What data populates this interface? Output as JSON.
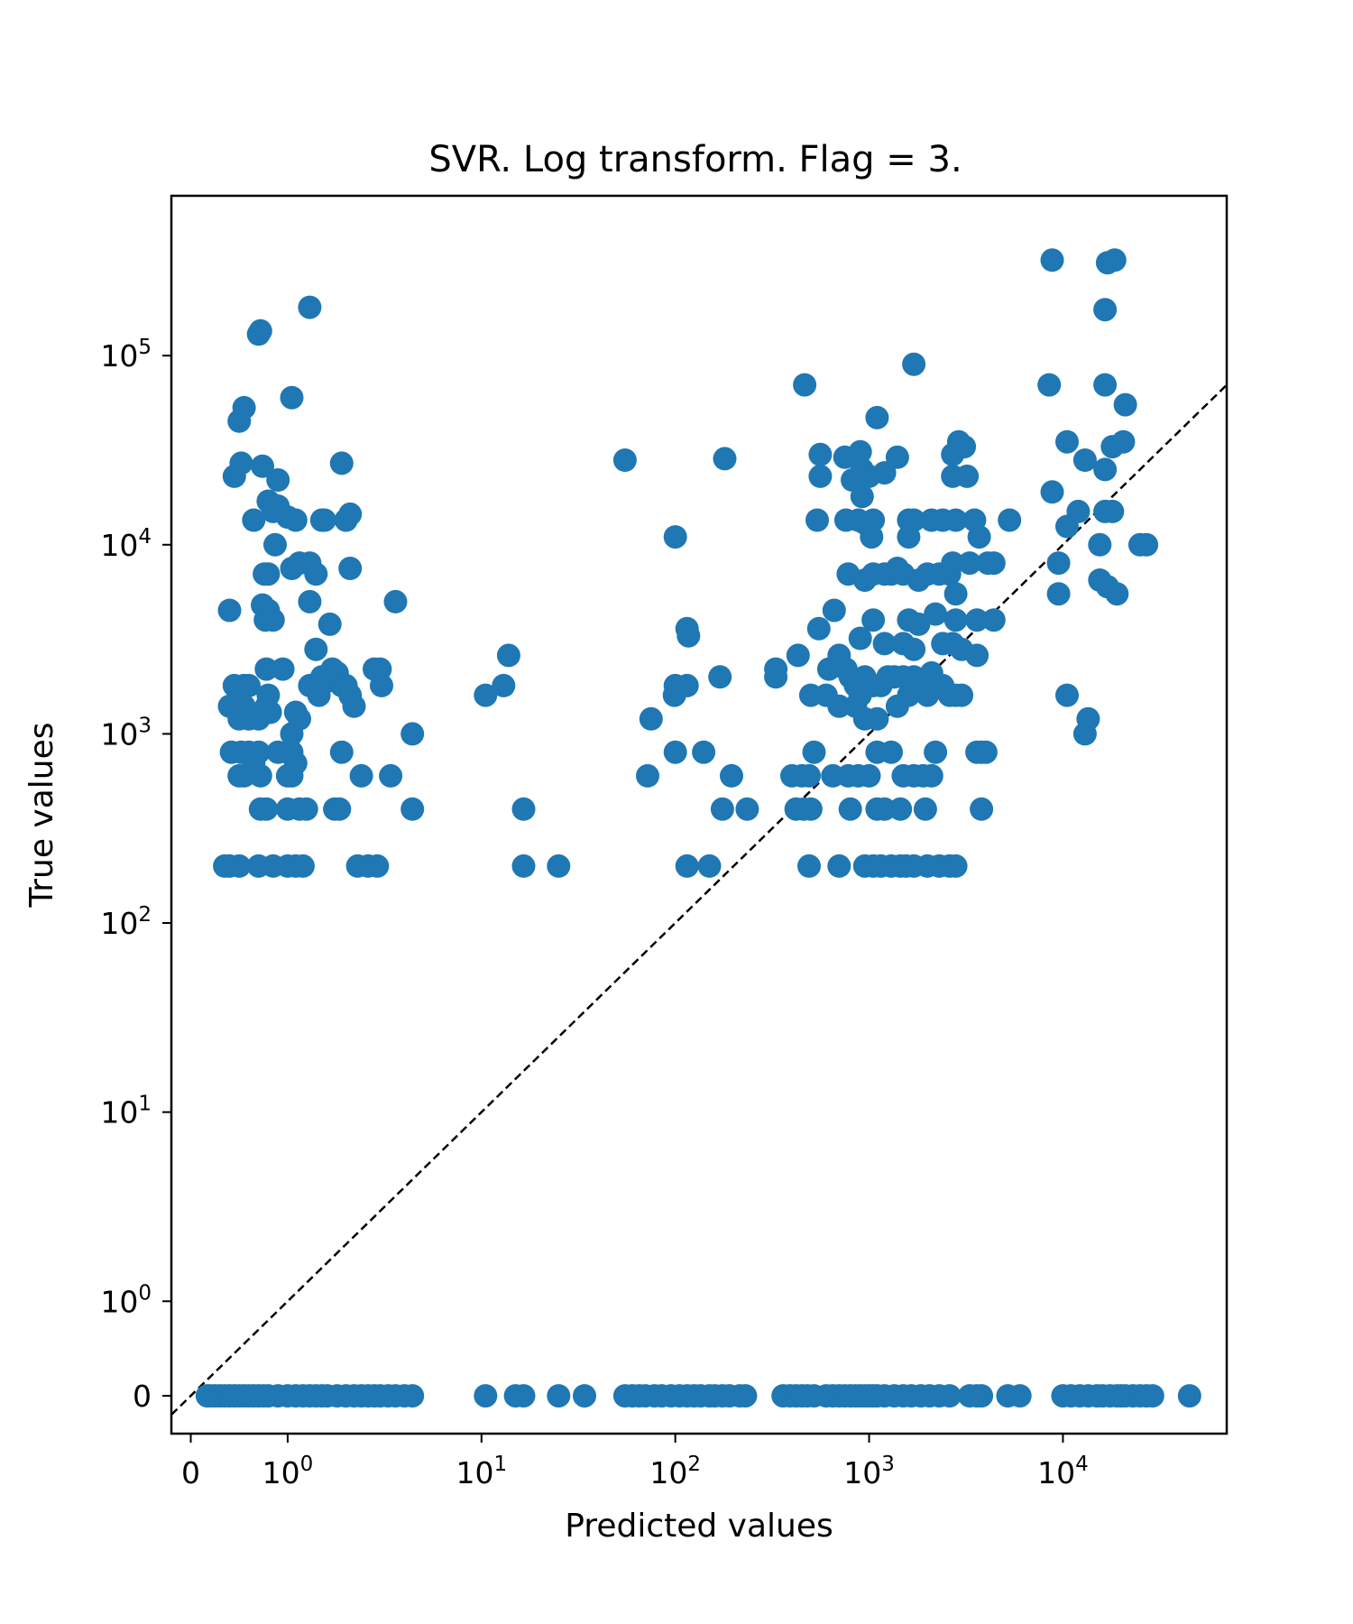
{
  "chart_data": {
    "type": "scatter",
    "title": "SVR. Log transform. Flag = 3.",
    "xlabel": "Predicted values",
    "ylabel": "True values",
    "xscale": "symlog",
    "yscale": "symlog",
    "xlim": [
      -0.2,
      70000
    ],
    "ylim": [
      -0.4,
      700000
    ],
    "grid": false,
    "x_ticks": [
      {
        "value": 0,
        "base": "0",
        "exp": ""
      },
      {
        "value": 1,
        "base": "10",
        "exp": "0"
      },
      {
        "value": 10,
        "base": "10",
        "exp": "1"
      },
      {
        "value": 100,
        "base": "10",
        "exp": "2"
      },
      {
        "value": 1000,
        "base": "10",
        "exp": "3"
      },
      {
        "value": 10000,
        "base": "10",
        "exp": "4"
      }
    ],
    "y_ticks": [
      {
        "value": 0,
        "base": "0",
        "exp": ""
      },
      {
        "value": 1,
        "base": "10",
        "exp": "0"
      },
      {
        "value": 10,
        "base": "10",
        "exp": "1"
      },
      {
        "value": 100,
        "base": "10",
        "exp": "2"
      },
      {
        "value": 1000,
        "base": "10",
        "exp": "3"
      },
      {
        "value": 10000,
        "base": "10",
        "exp": "4"
      },
      {
        "value": 100000,
        "base": "10",
        "exp": "5"
      }
    ],
    "reference_line": {
      "style": "dashed",
      "color": "#000000",
      "from": [
        -0.2,
        -0.2
      ],
      "to": [
        70000,
        70000
      ]
    },
    "marker_color": "#1f77b4",
    "points": [
      [
        0.17,
        0
      ],
      [
        0.2,
        0
      ],
      [
        0.25,
        0
      ],
      [
        0.3,
        0
      ],
      [
        0.35,
        0
      ],
      [
        0.4,
        0
      ],
      [
        0.45,
        0
      ],
      [
        0.5,
        0
      ],
      [
        0.55,
        0
      ],
      [
        0.6,
        0
      ],
      [
        0.65,
        0
      ],
      [
        0.7,
        0
      ],
      [
        0.75,
        0
      ],
      [
        0.8,
        0
      ],
      [
        0.9,
        0
      ],
      [
        1.0,
        0
      ],
      [
        1.1,
        0
      ],
      [
        1.2,
        0
      ],
      [
        1.3,
        0
      ],
      [
        1.4,
        0
      ],
      [
        1.5,
        0
      ],
      [
        1.6,
        0
      ],
      [
        1.8,
        0
      ],
      [
        2.0,
        0
      ],
      [
        2.2,
        0
      ],
      [
        2.4,
        0
      ],
      [
        2.6,
        0
      ],
      [
        2.8,
        0
      ],
      [
        3.0,
        0
      ],
      [
        3.3,
        0
      ],
      [
        3.6,
        0
      ],
      [
        4.0,
        0
      ],
      [
        4.4,
        0
      ],
      [
        10.5,
        0
      ],
      [
        15,
        0
      ],
      [
        16.5,
        0
      ],
      [
        25,
        0
      ],
      [
        34,
        0
      ],
      [
        55,
        0
      ],
      [
        60,
        0
      ],
      [
        65,
        0
      ],
      [
        70,
        0
      ],
      [
        78,
        0
      ],
      [
        85,
        0
      ],
      [
        95,
        0
      ],
      [
        105,
        0
      ],
      [
        115,
        0
      ],
      [
        125,
        0
      ],
      [
        135,
        0
      ],
      [
        150,
        0
      ],
      [
        160,
        0
      ],
      [
        175,
        0
      ],
      [
        190,
        0
      ],
      [
        215,
        0
      ],
      [
        230,
        0
      ],
      [
        360,
        0
      ],
      [
        390,
        0
      ],
      [
        420,
        0
      ],
      [
        450,
        0
      ],
      [
        480,
        0
      ],
      [
        520,
        0
      ],
      [
        600,
        0
      ],
      [
        650,
        0
      ],
      [
        700,
        0
      ],
      [
        750,
        0
      ],
      [
        800,
        0
      ],
      [
        850,
        0
      ],
      [
        900,
        0
      ],
      [
        950,
        0
      ],
      [
        1000,
        0
      ],
      [
        1050,
        0
      ],
      [
        1100,
        0
      ],
      [
        1200,
        0
      ],
      [
        1350,
        0
      ],
      [
        1500,
        0
      ],
      [
        1650,
        0
      ],
      [
        1850,
        0
      ],
      [
        2050,
        0
      ],
      [
        2300,
        0
      ],
      [
        2600,
        0
      ],
      [
        3300,
        0
      ],
      [
        3600,
        0
      ],
      [
        3800,
        0
      ],
      [
        5200,
        0
      ],
      [
        6000,
        0
      ],
      [
        10000,
        0
      ],
      [
        11000,
        0
      ],
      [
        12200,
        0
      ],
      [
        13500,
        0
      ],
      [
        15000,
        0
      ],
      [
        16000,
        0
      ],
      [
        17500,
        0
      ],
      [
        19000,
        0
      ],
      [
        20000,
        0
      ],
      [
        21000,
        0
      ],
      [
        23000,
        0
      ],
      [
        25000,
        0
      ],
      [
        27000,
        0
      ],
      [
        29000,
        0
      ],
      [
        45000,
        0
      ],
      [
        0.5,
        45000
      ],
      [
        0.55,
        53000
      ],
      [
        0.52,
        27000
      ],
      [
        0.45,
        23000
      ],
      [
        0.7,
        130000
      ],
      [
        0.72,
        135000
      ],
      [
        0.74,
        26000
      ],
      [
        1.05,
        60000
      ],
      [
        1.3,
        180000
      ],
      [
        0.9,
        22000
      ],
      [
        1.9,
        27000
      ],
      [
        0.65,
        13500
      ],
      [
        0.8,
        17000
      ],
      [
        0.85,
        15000
      ],
      [
        0.9,
        16000
      ],
      [
        1.0,
        14000
      ],
      [
        1.1,
        13500
      ],
      [
        1.5,
        13500
      ],
      [
        1.55,
        13500
      ],
      [
        2.0,
        13500
      ],
      [
        2.1,
        14500
      ],
      [
        0.87,
        10000
      ],
      [
        0.8,
        7000
      ],
      [
        0.76,
        7000
      ],
      [
        1.05,
        7500
      ],
      [
        1.15,
        8000
      ],
      [
        1.3,
        8000
      ],
      [
        1.4,
        7000
      ],
      [
        2.1,
        7500
      ],
      [
        3.6,
        5000
      ],
      [
        0.4,
        4500
      ],
      [
        0.74,
        4800
      ],
      [
        0.77,
        4000
      ],
      [
        0.8,
        4500
      ],
      [
        0.85,
        4000
      ],
      [
        1.3,
        5000
      ],
      [
        1.65,
        3800
      ],
      [
        1.4,
        2800
      ],
      [
        0.45,
        1800
      ],
      [
        0.55,
        1800
      ],
      [
        0.6,
        1800
      ],
      [
        0.78,
        2200
      ],
      [
        0.95,
        2200
      ],
      [
        0.8,
        1600
      ],
      [
        1.3,
        1800
      ],
      [
        1.45,
        1600
      ],
      [
        1.5,
        2000
      ],
      [
        1.6,
        1900
      ],
      [
        1.7,
        2200
      ],
      [
        1.8,
        2100
      ],
      [
        1.9,
        1800
      ],
      [
        2.0,
        1800
      ],
      [
        2.1,
        1600
      ],
      [
        2.2,
        1400
      ],
      [
        2.8,
        2200
      ],
      [
        3.0,
        2200
      ],
      [
        3.05,
        1800
      ],
      [
        0.4,
        1400
      ],
      [
        0.5,
        1200
      ],
      [
        0.55,
        1400
      ],
      [
        0.6,
        1200
      ],
      [
        0.7,
        1200
      ],
      [
        0.78,
        1400
      ],
      [
        0.82,
        1300
      ],
      [
        1.1,
        1300
      ],
      [
        1.15,
        1200
      ],
      [
        1.05,
        1000
      ],
      [
        0.42,
        800
      ],
      [
        0.52,
        800
      ],
      [
        0.6,
        800
      ],
      [
        0.65,
        700
      ],
      [
        0.5,
        600
      ],
      [
        0.55,
        600
      ],
      [
        0.72,
        600
      ],
      [
        0.7,
        800
      ],
      [
        0.9,
        800
      ],
      [
        1.0,
        800
      ],
      [
        1.05,
        800
      ],
      [
        1.1,
        700
      ],
      [
        1.0,
        600
      ],
      [
        1.05,
        600
      ],
      [
        1.9,
        800
      ],
      [
        2.4,
        600
      ],
      [
        3.4,
        600
      ],
      [
        4.4,
        1000
      ],
      [
        0.72,
        400
      ],
      [
        0.78,
        400
      ],
      [
        1.0,
        400
      ],
      [
        1.15,
        400
      ],
      [
        1.25,
        400
      ],
      [
        1.75,
        400
      ],
      [
        1.85,
        400
      ],
      [
        4.4,
        400
      ],
      [
        0.35,
        200
      ],
      [
        0.4,
        200
      ],
      [
        0.5,
        200
      ],
      [
        0.7,
        200
      ],
      [
        0.85,
        200
      ],
      [
        1.0,
        200
      ],
      [
        1.1,
        200
      ],
      [
        1.2,
        200
      ],
      [
        2.3,
        200
      ],
      [
        2.6,
        200
      ],
      [
        2.9,
        200
      ],
      [
        10.5,
        1600
      ],
      [
        13,
        1800
      ],
      [
        13.8,
        2600
      ],
      [
        16.5,
        400
      ],
      [
        16.5,
        200
      ],
      [
        25,
        200
      ],
      [
        55,
        28000
      ],
      [
        100,
        11000
      ],
      [
        180,
        28500
      ],
      [
        170,
        2000
      ],
      [
        115,
        3600
      ],
      [
        117,
        3300
      ],
      [
        115,
        1800
      ],
      [
        100,
        1800
      ],
      [
        99,
        1600
      ],
      [
        75,
        1200
      ],
      [
        72,
        600
      ],
      [
        100,
        800
      ],
      [
        140,
        800
      ],
      [
        195,
        600
      ],
      [
        175,
        400
      ],
      [
        235,
        400
      ],
      [
        115,
        200
      ],
      [
        150,
        200
      ],
      [
        465,
        70000
      ],
      [
        1700,
        90000
      ],
      [
        1100,
        47000
      ],
      [
        560,
        30000
      ],
      [
        560,
        23000
      ],
      [
        750,
        29000
      ],
      [
        900,
        31000
      ],
      [
        920,
        25000
      ],
      [
        820,
        22000
      ],
      [
        1000,
        23000
      ],
      [
        1200,
        24000
      ],
      [
        1400,
        29000
      ],
      [
        2700,
        30000
      ],
      [
        2900,
        35000
      ],
      [
        3100,
        33000
      ],
      [
        2700,
        23000
      ],
      [
        3200,
        23000
      ],
      [
        540,
        13500
      ],
      [
        760,
        13500
      ],
      [
        880,
        13500
      ],
      [
        950,
        13000
      ],
      [
        1050,
        13500
      ],
      [
        1030,
        11000
      ],
      [
        1600,
        13500
      ],
      [
        1700,
        13500
      ],
      [
        2100,
        13500
      ],
      [
        2400,
        13500
      ],
      [
        2800,
        13500
      ],
      [
        3500,
        13500
      ],
      [
        5300,
        13500
      ],
      [
        920,
        18000
      ],
      [
        1600,
        11000
      ],
      [
        2700,
        8000
      ],
      [
        3300,
        8000
      ],
      [
        3700,
        11000
      ],
      [
        4100,
        8000
      ],
      [
        4400,
        8000
      ],
      [
        780,
        7000
      ],
      [
        950,
        6500
      ],
      [
        1050,
        7000
      ],
      [
        1200,
        7000
      ],
      [
        1300,
        7000
      ],
      [
        1400,
        7500
      ],
      [
        1500,
        7000
      ],
      [
        1800,
        6500
      ],
      [
        2000,
        7000
      ],
      [
        2300,
        7000
      ],
      [
        2600,
        7000
      ],
      [
        2800,
        5500
      ],
      [
        660,
        4500
      ],
      [
        550,
        3600
      ],
      [
        1050,
        4000
      ],
      [
        1600,
        4000
      ],
      [
        1800,
        3800
      ],
      [
        2200,
        4300
      ],
      [
        2800,
        4000
      ],
      [
        3600,
        4000
      ],
      [
        4400,
        4000
      ],
      [
        900,
        3200
      ],
      [
        1200,
        3000
      ],
      [
        1500,
        3000
      ],
      [
        1700,
        2800
      ],
      [
        2400,
        3000
      ],
      [
        2700,
        3000
      ],
      [
        3000,
        2800
      ],
      [
        3600,
        2600
      ],
      [
        330,
        2200
      ],
      [
        330,
        2000
      ],
      [
        430,
        2600
      ],
      [
        620,
        2200
      ],
      [
        700,
        2600
      ],
      [
        760,
        2200
      ],
      [
        800,
        2000
      ],
      [
        850,
        1800
      ],
      [
        900,
        1600
      ],
      [
        950,
        2000
      ],
      [
        1050,
        1800
      ],
      [
        1150,
        1800
      ],
      [
        1250,
        2000
      ],
      [
        1350,
        2000
      ],
      [
        1500,
        2000
      ],
      [
        1700,
        2000
      ],
      [
        2100,
        2100
      ],
      [
        2400,
        1800
      ],
      [
        2600,
        1600
      ],
      [
        500,
        1600
      ],
      [
        600,
        1600
      ],
      [
        700,
        1400
      ],
      [
        850,
        1400
      ],
      [
        950,
        1200
      ],
      [
        1100,
        1200
      ],
      [
        1400,
        1400
      ],
      [
        1600,
        1600
      ],
      [
        1800,
        1800
      ],
      [
        2000,
        1600
      ],
      [
        2300,
        1800
      ],
      [
        2800,
        1600
      ],
      [
        3000,
        1600
      ],
      [
        400,
        600
      ],
      [
        450,
        600
      ],
      [
        490,
        600
      ],
      [
        520,
        800
      ],
      [
        650,
        600
      ],
      [
        780,
        600
      ],
      [
        880,
        600
      ],
      [
        1000,
        600
      ],
      [
        1100,
        800
      ],
      [
        1300,
        800
      ],
      [
        1500,
        600
      ],
      [
        1700,
        600
      ],
      [
        1900,
        600
      ],
      [
        2100,
        600
      ],
      [
        2200,
        800
      ],
      [
        3600,
        800
      ],
      [
        4000,
        800
      ],
      [
        3800,
        800
      ],
      [
        420,
        400
      ],
      [
        460,
        400
      ],
      [
        500,
        400
      ],
      [
        800,
        400
      ],
      [
        1100,
        400
      ],
      [
        1200,
        400
      ],
      [
        1450,
        400
      ],
      [
        1950,
        400
      ],
      [
        3800,
        400
      ],
      [
        490,
        200
      ],
      [
        700,
        200
      ],
      [
        950,
        200
      ],
      [
        1050,
        200
      ],
      [
        1150,
        200
      ],
      [
        1300,
        200
      ],
      [
        1450,
        200
      ],
      [
        1550,
        200
      ],
      [
        1700,
        200
      ],
      [
        2000,
        200
      ],
      [
        2300,
        200
      ],
      [
        2600,
        200
      ],
      [
        2800,
        200
      ],
      [
        8800,
        320000
      ],
      [
        17000,
        310000
      ],
      [
        18500,
        320000
      ],
      [
        16500,
        175000
      ],
      [
        16500,
        70000
      ],
      [
        8500,
        70000
      ],
      [
        21000,
        55000
      ],
      [
        10500,
        35000
      ],
      [
        13000,
        28000
      ],
      [
        16500,
        25000
      ],
      [
        18000,
        33000
      ],
      [
        20500,
        35000
      ],
      [
        8800,
        19000
      ],
      [
        12000,
        15000
      ],
      [
        10500,
        12500
      ],
      [
        16500,
        15000
      ],
      [
        18000,
        15000
      ],
      [
        15500,
        10000
      ],
      [
        9500,
        8000
      ],
      [
        9500,
        5500
      ],
      [
        15500,
        6500
      ],
      [
        17000,
        6000
      ],
      [
        19000,
        5500
      ],
      [
        25000,
        10000
      ],
      [
        27000,
        10000
      ],
      [
        10500,
        1600
      ],
      [
        13000,
        1000
      ],
      [
        13500,
        1200
      ]
    ]
  }
}
